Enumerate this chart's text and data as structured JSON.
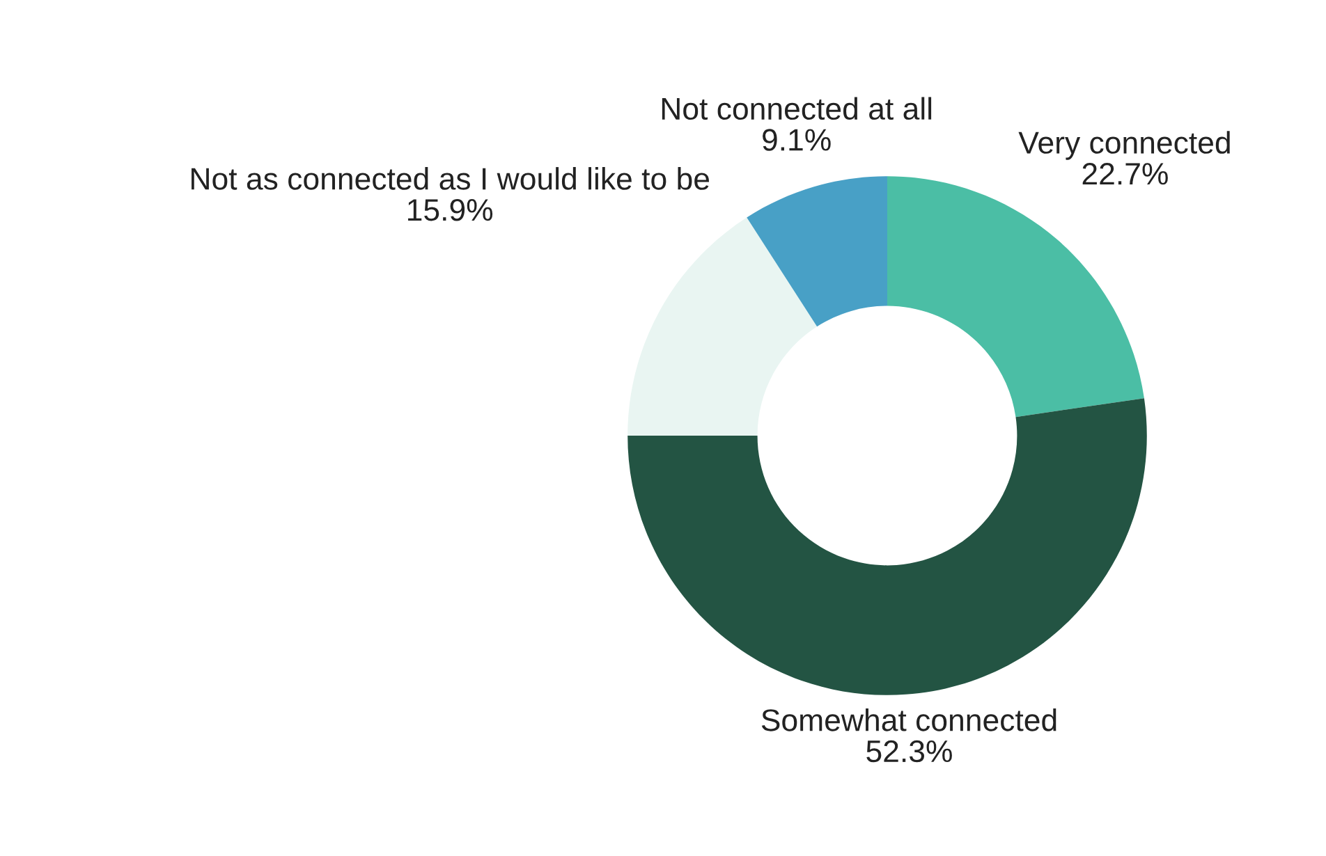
{
  "chart_data": {
    "type": "donut",
    "categories": [
      "Very connected",
      "Somewhat connected",
      "Not as connected as I would like to be",
      "Not connected at all"
    ],
    "values": [
      22.7,
      52.3,
      15.9,
      9.1
    ],
    "colors": [
      "#4bbea5",
      "#235443",
      "#e9f5f2",
      "#48a0c6"
    ],
    "value_labels": [
      "22.7%",
      "52.3%",
      "15.9%",
      "9.1%"
    ]
  }
}
